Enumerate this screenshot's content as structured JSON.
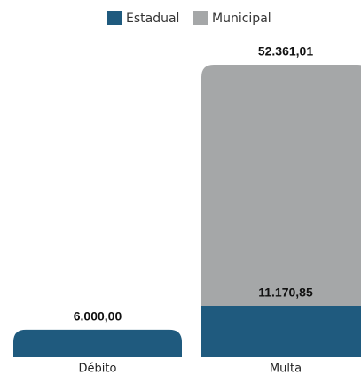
{
  "chart_data": {
    "type": "stacked_bar",
    "categories": [
      "Débito",
      "Multa"
    ],
    "series": [
      {
        "name": "Estadual",
        "color": "#1f5a7e",
        "values": [
          6000,
          11170.85
        ],
        "value_labels": [
          "6.000,00",
          "11.170,85"
        ]
      },
      {
        "name": "Municipal",
        "color": "#a5a7a8",
        "values": [
          null,
          52361.01
        ],
        "value_labels": [
          null,
          "52.361,01"
        ]
      }
    ]
  }
}
